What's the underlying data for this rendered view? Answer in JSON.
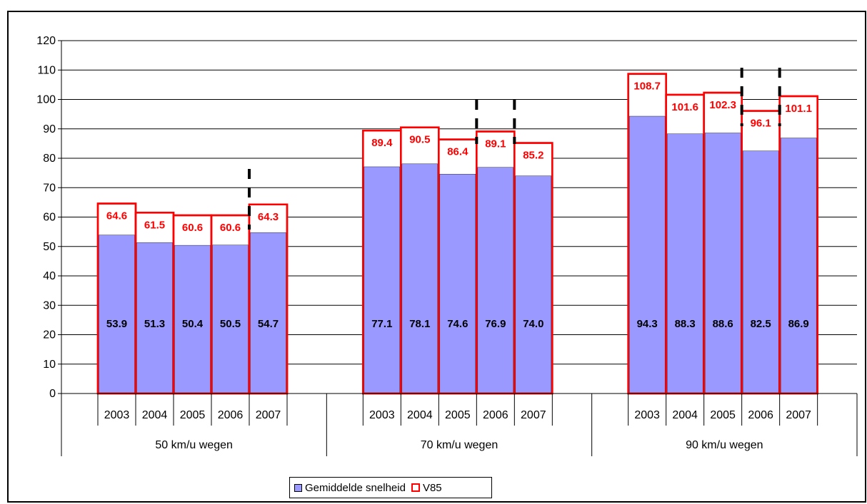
{
  "chart_data": {
    "type": "bar",
    "ylim": [
      0,
      120
    ],
    "yticks": [
      0,
      10,
      20,
      30,
      40,
      50,
      60,
      70,
      80,
      90,
      100,
      110,
      120
    ],
    "grid": true,
    "groups": [
      {
        "label": "50 km/u wegen",
        "categories": [
          "2003",
          "2004",
          "2005",
          "2006",
          "2007"
        ]
      },
      {
        "label": "70 km/u wegen",
        "categories": [
          "2003",
          "2004",
          "2005",
          "2006",
          "2007"
        ]
      },
      {
        "label": "90 km/u wegen",
        "categories": [
          "2003",
          "2004",
          "2005",
          "2006",
          "2007"
        ]
      }
    ],
    "series": [
      {
        "name": "Gemiddelde snelheid",
        "color": "#9999ff",
        "values": [
          53.9,
          51.3,
          50.4,
          50.5,
          54.7,
          77.1,
          78.1,
          74.6,
          76.9,
          74.0,
          94.3,
          88.3,
          88.6,
          82.5,
          86.9
        ],
        "labels": [
          "53.9",
          "51.3",
          "50.4",
          "50.5",
          "54.7",
          "77.1",
          "78.1",
          "74.6",
          "76.9",
          "74.0",
          "94.3",
          "88.3",
          "88.6",
          "82.5",
          "86.9"
        ]
      },
      {
        "name": "V85",
        "color": "#ff0000",
        "values": [
          64.6,
          61.5,
          60.6,
          60.6,
          64.3,
          89.4,
          90.5,
          86.4,
          89.1,
          85.2,
          108.7,
          101.6,
          102.3,
          96.1,
          101.1
        ],
        "labels": [
          "64.6",
          "61.5",
          "60.6",
          "60.6",
          "64.3",
          "89.4",
          "90.5",
          "86.4",
          "89.1",
          "85.2",
          "108.7",
          "101.6",
          "102.3",
          "96.1",
          "101.1"
        ]
      }
    ],
    "legend": {
      "position": "bottom-center"
    },
    "annotations": "dashed black vertical break markers between selected years"
  },
  "legend": {
    "avg_label": "Gemiddelde snelheid",
    "v85_label": "V85"
  }
}
